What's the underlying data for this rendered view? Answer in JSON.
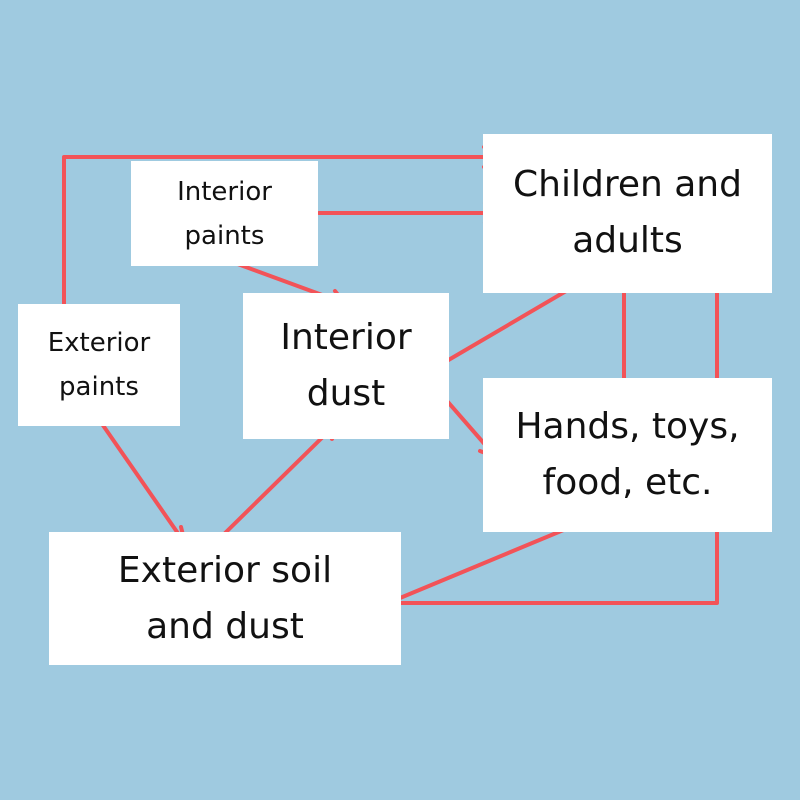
{
  "diagram": {
    "nodes": {
      "interior_paints": [
        "Interior",
        "paints"
      ],
      "exterior_paints": [
        "Exterior",
        "paints"
      ],
      "interior_dust": [
        "Interior",
        "dust"
      ],
      "children_adults": [
        "Children and",
        "adults"
      ],
      "hands_toys": [
        "Hands, toys,",
        "food, etc."
      ],
      "exterior_soil": [
        "Exterior soil",
        "and dust"
      ]
    },
    "edges": [
      {
        "from": "exterior_paints",
        "to": "children_adults"
      },
      {
        "from": "interior_paints",
        "to": "children_adults"
      },
      {
        "from": "interior_paints",
        "to": "interior_dust"
      },
      {
        "from": "exterior_paints",
        "to": "exterior_soil"
      },
      {
        "from": "exterior_soil",
        "to": "interior_dust"
      },
      {
        "from": "interior_dust",
        "to": "children_adults"
      },
      {
        "from": "interior_dust",
        "to": "hands_toys"
      },
      {
        "from": "exterior_soil",
        "to": "hands_toys"
      },
      {
        "from": "exterior_soil",
        "to": "children_adults"
      },
      {
        "from": "hands_toys",
        "to": "children_adults"
      }
    ],
    "colors": {
      "background": "#9fcae0",
      "box": "#ffffff",
      "arrow": "#f25358"
    }
  }
}
